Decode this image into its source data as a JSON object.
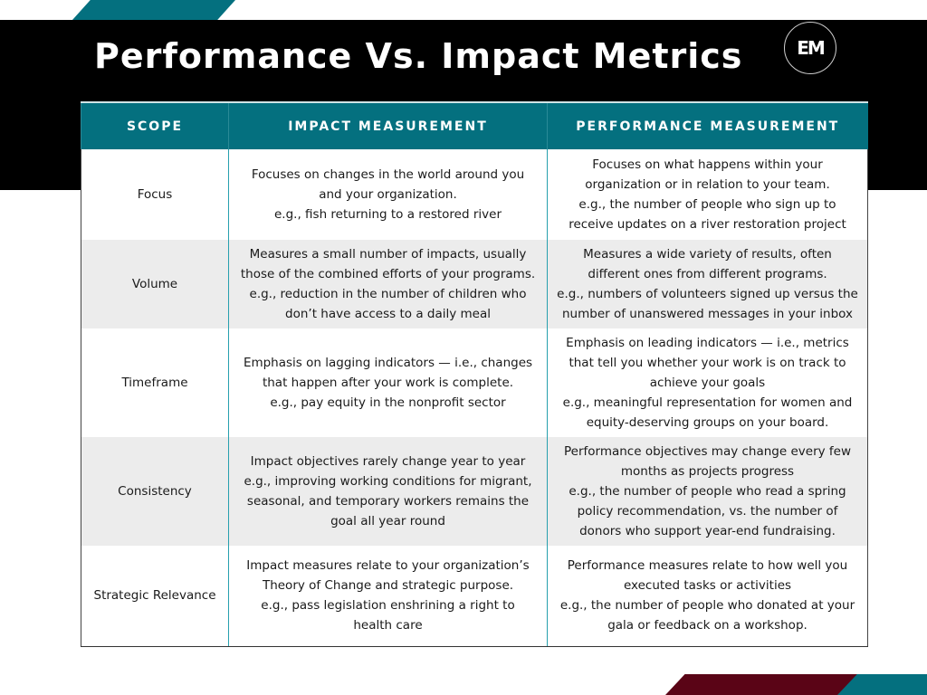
{
  "header": {
    "title": "Performance Vs. Impact Metrics",
    "logo_text": "EM",
    "logo_icon": "em-circle-logo-icon"
  },
  "colors": {
    "teal": "#04707f",
    "black": "#000000",
    "maroon": "#5a0416",
    "row_shade": "#ececec"
  },
  "table": {
    "columns": [
      "SCOPE",
      "IMPACT MEASUREMENT",
      "PERFORMANCE MEASUREMENT"
    ],
    "rows": [
      {
        "scope": "Focus",
        "impact": [
          "Focuses on changes in the world around you",
          "and your organization.",
          "e.g., fish returning to a restored river"
        ],
        "performance": [
          "Focuses on what happens within your",
          "organization or in relation to your team.",
          "e.g., the number of people who sign up to",
          "receive updates on a river restoration project"
        ]
      },
      {
        "scope": "Volume",
        "impact": [
          "Measures a small number of impacts, usually",
          "those of the combined efforts of your programs.",
          "e.g., reduction in the number of children who",
          "don’t have access to a daily meal"
        ],
        "performance": [
          "Measures a wide variety of results, often",
          "different ones from different programs.",
          "e.g., numbers of volunteers signed up versus the",
          "number of unanswered messages in your inbox"
        ]
      },
      {
        "scope": "Timeframe",
        "impact": [
          "Emphasis on lagging indicators — i.e., changes",
          "that happen after your work is complete.",
          "e.g., pay equity in the nonprofit sector"
        ],
        "performance": [
          "Emphasis on leading indicators — i.e., metrics",
          "that tell you whether your work is on track to",
          "achieve your goals",
          "e.g., meaningful representation for women and",
          "equity-deserving groups on your board."
        ]
      },
      {
        "scope": "Consistency",
        "impact": [
          "Impact objectives rarely change year to year",
          "e.g., improving working conditions for migrant,",
          "seasonal, and temporary workers remains the",
          "goal all year round"
        ],
        "performance": [
          "Performance objectives may change every few",
          "months as projects progress",
          "e.g., the number of people who read a spring",
          "policy recommendation, vs. the number of",
          "donors who support year-end fundraising."
        ]
      },
      {
        "scope": "Strategic Relevance",
        "impact": [
          "Impact measures relate to your organization’s",
          "Theory of Change and strategic purpose.",
          "e.g., pass legislation enshrining a right to",
          "health care"
        ],
        "performance": [
          "Performance measures relate to how well you",
          "executed tasks or activities",
          "e.g., the number of people who donated at your",
          "gala or feedback on a workshop."
        ]
      }
    ]
  }
}
